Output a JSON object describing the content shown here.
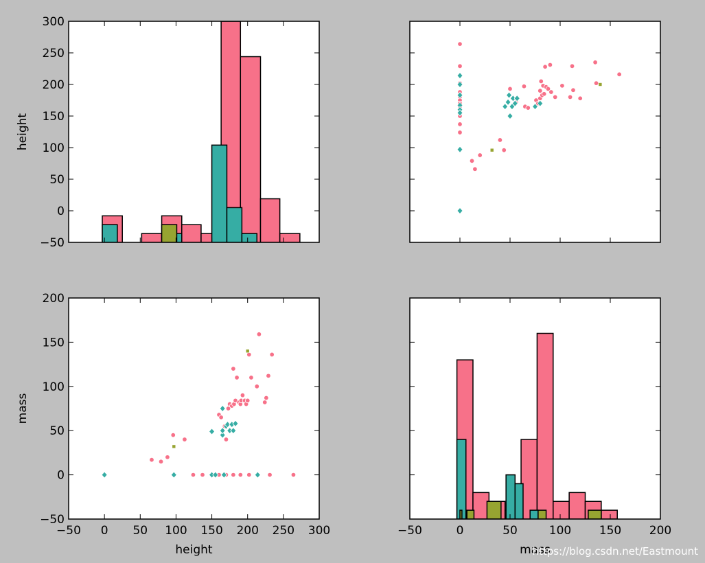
{
  "chart_data": [
    {
      "type": "bar",
      "position": "top-left",
      "xlim": [
        -50,
        300
      ],
      "ylim": [
        -50,
        300
      ],
      "xticks": [],
      "yticks": [
        -50,
        0,
        50,
        100,
        150,
        200,
        250,
        300
      ],
      "xlabel": "",
      "ylabel": "height",
      "bars": [
        {
          "color": "#f77189",
          "x0": -3,
          "x1": 25,
          "top": -8
        },
        {
          "color": "#f77189",
          "x0": 52,
          "x1": 80,
          "top": -36
        },
        {
          "color": "#f77189",
          "x0": 80,
          "x1": 108,
          "top": -8
        },
        {
          "color": "#f77189",
          "x0": 108,
          "x1": 135,
          "top": -22
        },
        {
          "color": "#f77189",
          "x0": 135,
          "x1": 163,
          "top": -36
        },
        {
          "color": "#f77189",
          "x0": 163,
          "x1": 190,
          "top": 300
        },
        {
          "color": "#f77189",
          "x0": 190,
          "x1": 218,
          "top": 244
        },
        {
          "color": "#f77189",
          "x0": 218,
          "x1": 245,
          "top": 19
        },
        {
          "color": "#f77189",
          "x0": 245,
          "x1": 273,
          "top": -36
        },
        {
          "color": "#36ada4",
          "x0": -3,
          "x1": 18,
          "top": -22
        },
        {
          "color": "#36ada4",
          "x0": 87,
          "x1": 108,
          "top": -36
        },
        {
          "color": "#36ada4",
          "x0": 150,
          "x1": 171,
          "top": 104
        },
        {
          "color": "#36ada4",
          "x0": 171,
          "x1": 192,
          "top": 5
        },
        {
          "color": "#36ada4",
          "x0": 192,
          "x1": 213,
          "top": -36
        },
        {
          "color": "#97a431",
          "x0": 80,
          "x1": 101,
          "top": -22
        }
      ]
    },
    {
      "type": "scatter",
      "position": "top-right",
      "xlim": [
        -50,
        200
      ],
      "ylim": [
        -50,
        300
      ],
      "xticks": [],
      "yticks": [],
      "xlabel": "",
      "ylabel": "",
      "series": [
        {
          "color": "#f77189",
          "marker": "circle",
          "points": [
            [
              0,
              264
            ],
            [
              0,
              229
            ],
            [
              0,
              202
            ],
            [
              0,
              188
            ],
            [
              0,
              183
            ],
            [
              0,
              180
            ],
            [
              0,
              175
            ],
            [
              0,
              170
            ],
            [
              0,
              165
            ],
            [
              0,
              150
            ],
            [
              0,
              137
            ],
            [
              0,
              124
            ],
            [
              12,
              79
            ],
            [
              15,
              66
            ],
            [
              20,
              88
            ],
            [
              40,
              112
            ],
            [
              44,
              96
            ],
            [
              50,
              193
            ],
            [
              55,
              175
            ],
            [
              56,
              172
            ],
            [
              64,
              197
            ],
            [
              65,
              165
            ],
            [
              68,
              163
            ],
            [
              76,
              175
            ],
            [
              78,
              170
            ],
            [
              80,
              178
            ],
            [
              80,
              190
            ],
            [
              81,
              205
            ],
            [
              82,
              183
            ],
            [
              83,
              198
            ],
            [
              84,
              185
            ],
            [
              85,
              228
            ],
            [
              86,
              196
            ],
            [
              88,
              193
            ],
            [
              90,
              231
            ],
            [
              91,
              188
            ],
            [
              95,
              180
            ],
            [
              102,
              198
            ],
            [
              110,
              180
            ],
            [
              112,
              229
            ],
            [
              113,
              191
            ],
            [
              120,
              178
            ],
            [
              135,
              235
            ],
            [
              136,
              202
            ],
            [
              159,
              216
            ]
          ]
        },
        {
          "color": "#36ada4",
          "marker": "diamond",
          "points": [
            [
              0,
              214
            ],
            [
              0,
              200
            ],
            [
              0,
              183
            ],
            [
              0,
              167
            ],
            [
              0,
              160
            ],
            [
              0,
              155
            ],
            [
              0,
              97
            ],
            [
              0,
              0
            ],
            [
              45,
              165
            ],
            [
              48,
              172
            ],
            [
              49,
              183
            ],
            [
              50,
              150
            ],
            [
              52,
              165
            ],
            [
              53,
              178
            ],
            [
              55,
              170
            ],
            [
              57,
              178
            ],
            [
              75,
              165
            ],
            [
              80,
              170
            ]
          ]
        },
        {
          "color": "#97a431",
          "marker": "square",
          "points": [
            [
              32,
              96
            ],
            [
              140,
              200
            ]
          ]
        }
      ]
    },
    {
      "type": "scatter",
      "position": "bottom-left",
      "xlim": [
        -50,
        300
      ],
      "ylim": [
        -50,
        200
      ],
      "xticks": [
        -50,
        0,
        50,
        100,
        150,
        200,
        250,
        300
      ],
      "yticks": [
        -50,
        0,
        50,
        100,
        150,
        200
      ],
      "xlabel": "height",
      "ylabel": "mass",
      "series": [
        {
          "color": "#f77189",
          "marker": "circle",
          "points": [
            [
              66,
              17
            ],
            [
              79,
              15
            ],
            [
              88,
              20
            ],
            [
              96,
              45
            ],
            [
              112,
              40
            ],
            [
              124,
              0
            ],
            [
              137,
              0
            ],
            [
              150,
              0
            ],
            [
              160,
              68
            ],
            [
              163,
              65
            ],
            [
              165,
              75
            ],
            [
              168,
              55
            ],
            [
              170,
              40
            ],
            [
              173,
              75
            ],
            [
              175,
              80
            ],
            [
              178,
              78
            ],
            [
              180,
              120
            ],
            [
              181,
              80
            ],
            [
              183,
              84
            ],
            [
              185,
              110
            ],
            [
              188,
              82
            ],
            [
              190,
              80
            ],
            [
              191,
              84
            ],
            [
              193,
              90
            ],
            [
              196,
              84
            ],
            [
              198,
              80
            ],
            [
              200,
              84
            ],
            [
              202,
              136
            ],
            [
              205,
              110
            ],
            [
              213,
              100
            ],
            [
              216,
              159
            ],
            [
              224,
              82
            ],
            [
              226,
              87
            ],
            [
              229,
              112
            ],
            [
              231,
              0
            ],
            [
              234,
              136
            ],
            [
              264,
              0
            ],
            [
              170,
              0
            ],
            [
              180,
              0
            ],
            [
              190,
              0
            ],
            [
              202,
              0
            ],
            [
              160,
              0
            ]
          ]
        },
        {
          "color": "#36ada4",
          "marker": "diamond",
          "points": [
            [
              0,
              0
            ],
            [
              97,
              0
            ],
            [
              150,
              0
            ],
            [
              150,
              49
            ],
            [
              155,
              0
            ],
            [
              165,
              45
            ],
            [
              165,
              50
            ],
            [
              165,
              75
            ],
            [
              167,
              0
            ],
            [
              170,
              55
            ],
            [
              172,
              57
            ],
            [
              175,
              50
            ],
            [
              178,
              57
            ],
            [
              180,
              50
            ],
            [
              183,
              58
            ],
            [
              214,
              0
            ]
          ]
        },
        {
          "color": "#97a431",
          "marker": "square",
          "points": [
            [
              97,
              32
            ],
            [
              200,
              140
            ]
          ]
        }
      ]
    },
    {
      "type": "bar",
      "position": "bottom-right",
      "xlim": [
        -50,
        200
      ],
      "ylim": [
        -50,
        200
      ],
      "xticks": [
        -50,
        0,
        50,
        100,
        150,
        200
      ],
      "yticks": [],
      "xlabel": "mass",
      "ylabel": "",
      "bars": [
        {
          "color": "#f77189",
          "x0": -3,
          "x1": 13,
          "top": 130
        },
        {
          "color": "#f77189",
          "x0": 13,
          "x1": 29,
          "top": -20
        },
        {
          "color": "#f77189",
          "x0": 29,
          "x1": 45,
          "top": -30
        },
        {
          "color": "#f77189",
          "x0": 45,
          "x1": 61,
          "top": -40
        },
        {
          "color": "#f77189",
          "x0": 61,
          "x1": 77,
          "top": 40
        },
        {
          "color": "#f77189",
          "x0": 77,
          "x1": 93,
          "top": 160
        },
        {
          "color": "#f77189",
          "x0": 93,
          "x1": 109,
          "top": -30
        },
        {
          "color": "#f77189",
          "x0": 109,
          "x1": 125,
          "top": -20
        },
        {
          "color": "#f77189",
          "x0": 125,
          "x1": 141,
          "top": -30
        },
        {
          "color": "#f77189",
          "x0": 141,
          "x1": 157,
          "top": -40
        },
        {
          "color": "#36ada4",
          "x0": -3,
          "x1": 6,
          "top": 40
        },
        {
          "color": "#36ada4",
          "x0": 46,
          "x1": 55,
          "top": 0
        },
        {
          "color": "#36ada4",
          "x0": 55,
          "x1": 63,
          "top": -10
        },
        {
          "color": "#36ada4",
          "x0": 70,
          "x1": 78,
          "top": -40
        },
        {
          "color": "#97a431",
          "x0": 0,
          "x1": 2,
          "top": -40
        },
        {
          "color": "#97a431",
          "x0": 7,
          "x1": 14,
          "top": -40
        },
        {
          "color": "#97a431",
          "x0": 27,
          "x1": 41,
          "top": -30
        },
        {
          "color": "#97a431",
          "x0": 78,
          "x1": 86,
          "top": -40
        },
        {
          "color": "#97a431",
          "x0": 128,
          "x1": 141,
          "top": -40
        }
      ]
    }
  ],
  "watermark": "https://blog.csdn.net/Eastmount"
}
